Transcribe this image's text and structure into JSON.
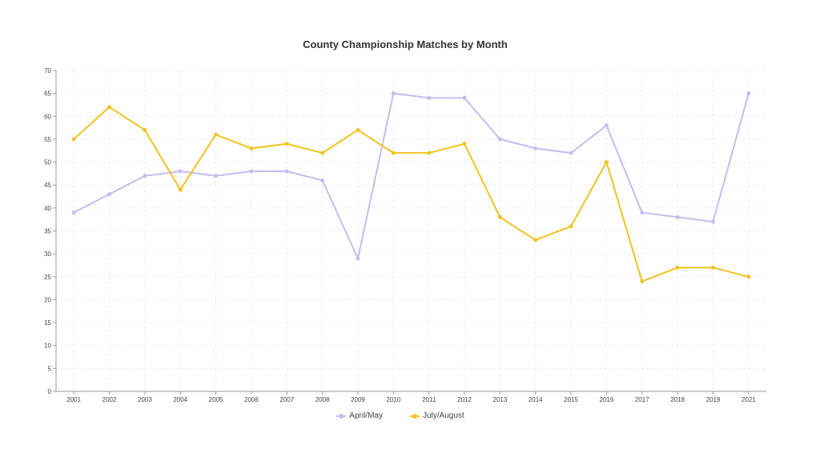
{
  "chart_data": {
    "type": "line",
    "title": "County Championship Matches by Month",
    "xlabel": "",
    "ylabel": "",
    "categories": [
      "2001",
      "2002",
      "2003",
      "2004",
      "2005",
      "2006",
      "2007",
      "2008",
      "2009",
      "2010",
      "2011",
      "2012",
      "2013",
      "2014",
      "2015",
      "2016",
      "2017",
      "2018",
      "2019",
      "2021"
    ],
    "ylim": [
      0,
      70
    ],
    "yticks": [
      "0",
      "5",
      "10",
      "15",
      "20",
      "25",
      "30",
      "35",
      "40",
      "45",
      "50",
      "55",
      "60",
      "65",
      "70"
    ],
    "grid": true,
    "legend_position": "bottom",
    "series": [
      {
        "name": "April/May",
        "color": "#c3bdee",
        "values": [
          39,
          43,
          47,
          48,
          47,
          48,
          48,
          46,
          29,
          65,
          64,
          64,
          55,
          53,
          52,
          58,
          39,
          38,
          37,
          65
        ]
      },
      {
        "name": "July/August",
        "color": "#f0c31e",
        "values": [
          55,
          62,
          57,
          44,
          56,
          53,
          54,
          52,
          57,
          52,
          52,
          54,
          38,
          33,
          36,
          50,
          24,
          27,
          27,
          25
        ]
      }
    ]
  }
}
